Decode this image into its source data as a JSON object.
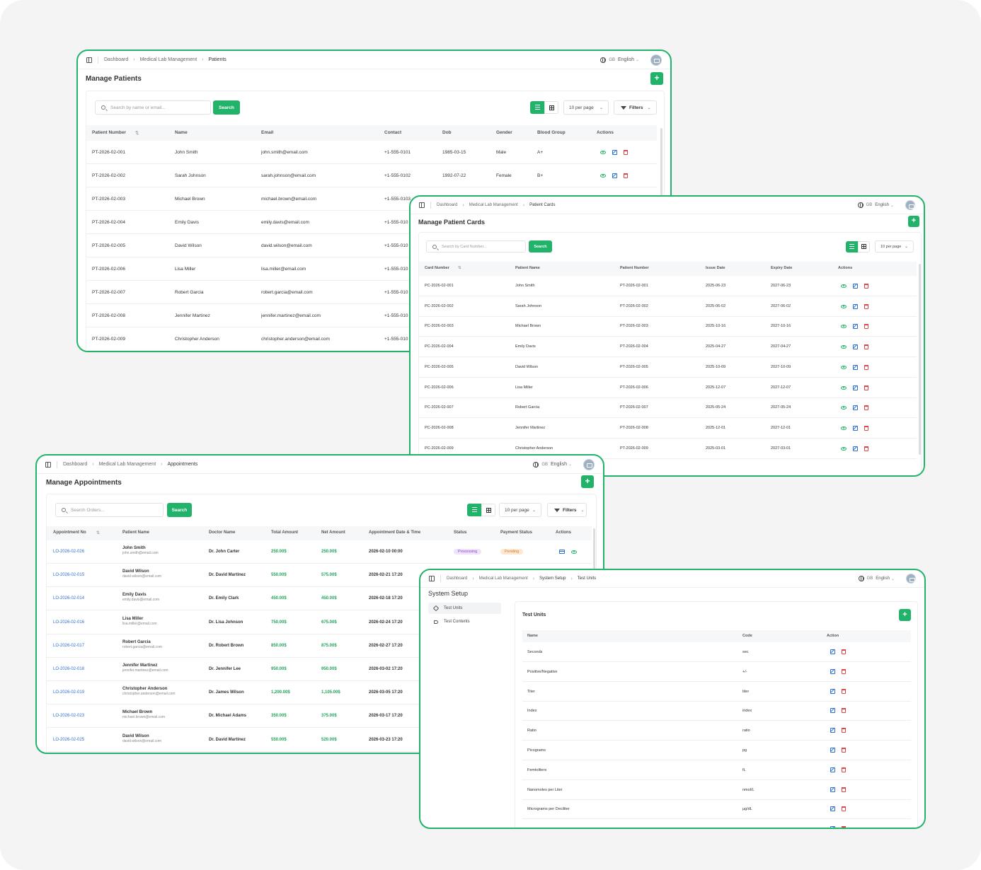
{
  "colors": {
    "accent": "#22b36b",
    "link": "#2b6fd6",
    "danger": "#e04545"
  },
  "common": {
    "language_code": "GB",
    "language": "English",
    "search_btn": "Search",
    "per_page": "10 per page",
    "filters": "Filters",
    "plus": "+",
    "sort_icon": "⇅"
  },
  "patients": {
    "breadcrumb": [
      "Dashboard",
      "Medical Lab Management",
      "Patients"
    ],
    "title": "Manage Patients",
    "search_placeholder": "Search by name or email...",
    "headers": [
      "Patient Number",
      "Name",
      "Email",
      "Contact",
      "Dob",
      "Gender",
      "Blood Group",
      "Actions"
    ],
    "rows": [
      [
        "PT-2026-02-001",
        "John Smith",
        "john.smith@email.com",
        "+1-555-0101",
        "1985-03-15",
        "Male",
        "A+"
      ],
      [
        "PT-2026-02-002",
        "Sarah Johnson",
        "sarah.johnson@email.com",
        "+1-555-0102",
        "1992-07-22",
        "Female",
        "B+"
      ],
      [
        "PT-2026-02-003",
        "Michael Brown",
        "michael.brown@email.com",
        "+1-555-0103",
        "",
        "",
        ""
      ],
      [
        "PT-2026-02-004",
        "Emily Davis",
        "emily.davis@email.com",
        "+1-555-010",
        "",
        "",
        ""
      ],
      [
        "PT-2026-02-005",
        "David Wilson",
        "david.wilson@email.com",
        "+1-555-010",
        "",
        "",
        ""
      ],
      [
        "PT-2026-02-006",
        "Lisa Miller",
        "lisa.miller@email.com",
        "+1-555-010",
        "",
        "",
        ""
      ],
      [
        "PT-2026-02-007",
        "Robert Garcia",
        "robert.garcia@email.com",
        "+1-555-010",
        "",
        "",
        ""
      ],
      [
        "PT-2026-02-008",
        "Jennifer Martinez",
        "jennifer.martinez@email.com",
        "+1-555-010",
        "",
        "",
        ""
      ],
      [
        "PT-2026-02-009",
        "Christopher Anderson",
        "christopher.anderson@email.com",
        "+1-555-010",
        "",
        "",
        ""
      ]
    ]
  },
  "cards": {
    "breadcrumb": [
      "Dashboard",
      "Medical Lab Management",
      "Patient Cards"
    ],
    "title": "Manage Patient Cards",
    "search_placeholder": "Search by Card Number...",
    "headers": [
      "Card Number",
      "Patient Name",
      "Patient Number",
      "Issue Date",
      "Expiry Date",
      "Actions"
    ],
    "rows": [
      [
        "PC-2026-02-001",
        "John Smith",
        "PT-2026-02-001",
        "2025-06-23",
        "2027-06-23"
      ],
      [
        "PC-2026-02-002",
        "Sarah Johnson",
        "PT-2026-02-002",
        "2025-06-02",
        "2027-06-02"
      ],
      [
        "PC-2026-02-003",
        "Michael Brown",
        "PT-2026-02-003",
        "2025-10-16",
        "2027-10-16"
      ],
      [
        "PC-2026-02-004",
        "Emily Davis",
        "PT-2026-02-004",
        "2025-04-27",
        "2027-04-27"
      ],
      [
        "PC-2026-02-005",
        "David Wilson",
        "PT-2026-02-005",
        "2025-10-09",
        "2027-10-09"
      ],
      [
        "PC-2026-02-006",
        "Lisa Miller",
        "PT-2026-02-006",
        "2025-12-07",
        "2027-12-07"
      ],
      [
        "PC-2026-02-007",
        "Robert Garcia",
        "PT-2026-02-007",
        "2025-05-24",
        "2027-05-24"
      ],
      [
        "PC-2026-02-008",
        "Jennifer Martinez",
        "PT-2026-02-008",
        "2025-12-01",
        "2027-12-01"
      ],
      [
        "PC-2026-02-009",
        "Christopher Anderson",
        "PT-2026-02-009",
        "2025-03-01",
        "2027-03-01"
      ]
    ]
  },
  "appointments": {
    "breadcrumb": [
      "Dashboard",
      "Medical Lab Management",
      "Appointments"
    ],
    "title": "Manage Appointments",
    "search_placeholder": "Search Orders...",
    "headers": [
      "Appointment No",
      "Patient Name",
      "Doctor Name",
      "Total Amount",
      "Net Amount",
      "Appointment Date & Time",
      "Status",
      "Payment Status",
      "Actions"
    ],
    "rows": [
      {
        "no": "LO-2026-02-026",
        "name": "John Smith",
        "email": "john.smith@email.com",
        "doctor": "Dr. John Carter",
        "total": "250.00$",
        "net": "250.00$",
        "date": "2026-02-10 00:00",
        "status": "Processing",
        "payment": "Pending"
      },
      {
        "no": "LO-2026-02-015",
        "name": "David Wilson",
        "email": "david.wilson@email.com",
        "doctor": "Dr. David Martinez",
        "total": "550.00$",
        "net": "575.00$",
        "date": "2026-02-21 17:20",
        "status": "",
        "payment": ""
      },
      {
        "no": "LO-2026-02-014",
        "name": "Emily Davis",
        "email": "emily.davis@email.com",
        "doctor": "Dr. Emily Clark",
        "total": "450.00$",
        "net": "450.00$",
        "date": "2026-02-18 17:20",
        "status": "",
        "payment": ""
      },
      {
        "no": "LO-2026-02-016",
        "name": "Lisa Miller",
        "email": "lisa.miller@email.com",
        "doctor": "Dr. Lisa Johnson",
        "total": "750.00$",
        "net": "675.00$",
        "date": "2026-02-24 17:20",
        "status": "",
        "payment": ""
      },
      {
        "no": "LO-2026-02-017",
        "name": "Robert Garcia",
        "email": "robert.garcia@email.com",
        "doctor": "Dr. Robert Brown",
        "total": "850.00$",
        "net": "875.00$",
        "date": "2026-02-27 17:20",
        "status": "",
        "payment": ""
      },
      {
        "no": "LO-2026-02-018",
        "name": "Jennifer Martinez",
        "email": "jennifer.martinez@email.com",
        "doctor": "Dr. Jennifer Lee",
        "total": "950.00$",
        "net": "950.00$",
        "date": "2026-03-02 17:20",
        "status": "",
        "payment": ""
      },
      {
        "no": "LO-2026-02-019",
        "name": "Christopher Anderson",
        "email": "christopher.anderson@email.com",
        "doctor": "Dr. James Wilson",
        "total": "1,200.00$",
        "net": "1,105.00$",
        "date": "2026-03-05 17:20",
        "status": "",
        "payment": ""
      },
      {
        "no": "LO-2026-02-023",
        "name": "Michael Brown",
        "email": "michael.brown@email.com",
        "doctor": "Dr. Michael Adams",
        "total": "350.00$",
        "net": "375.00$",
        "date": "2026-03-17 17:20",
        "status": "",
        "payment": ""
      },
      {
        "no": "LO-2026-02-025",
        "name": "David Wilson",
        "email": "david.wilson@email.com",
        "doctor": "Dr. David Martinez",
        "total": "550.00$",
        "net": "520.00$",
        "date": "2026-03-23 17:20",
        "status": "",
        "payment": ""
      }
    ]
  },
  "setup": {
    "breadcrumb": [
      "Dashboard",
      "Medical Lab Management",
      "System Setup",
      "Test Units"
    ],
    "title": "System Setup",
    "menu": [
      "Test Units",
      "Test Contents"
    ],
    "section_title": "Test Units",
    "headers": [
      "Name",
      "Code",
      "Action"
    ],
    "rows": [
      [
        "Seconds",
        "sec"
      ],
      [
        "Positive/Negative",
        "+/-"
      ],
      [
        "Titer",
        "titer"
      ],
      [
        "Index",
        "index"
      ],
      [
        "Ratio",
        "ratio"
      ],
      [
        "Picograms",
        "pg"
      ],
      [
        "Femtoliters",
        "fL"
      ],
      [
        "Nanomoles per Liter",
        "nmol/L"
      ],
      [
        "Micrograms per Deciliter",
        "µg/dL"
      ]
    ]
  }
}
